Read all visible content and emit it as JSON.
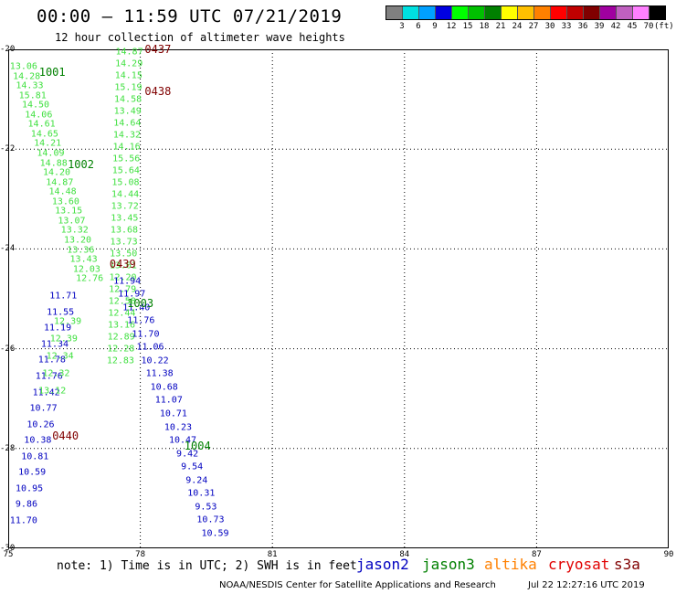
{
  "title": "00:00 – 11:59 UTC 07/21/2019",
  "subtitle": "12 hour collection of altimeter wave heights",
  "colorbar": {
    "colors": [
      "#808080",
      "#00e0e0",
      "#00a0ff",
      "#0000e0",
      "#00ff00",
      "#00c000",
      "#008000",
      "#ffff00",
      "#ffc000",
      "#ff8000",
      "#ff0000",
      "#c00000",
      "#800000",
      "#a000a0",
      "#c060c0",
      "#ff80ff",
      "#000000"
    ],
    "labels": [
      "3",
      "6",
      "9",
      "12",
      "15",
      "18",
      "21",
      "24",
      "27",
      "30",
      "33",
      "36",
      "39",
      "42",
      "45",
      "70"
    ],
    "unit": "(ft)"
  },
  "map": {
    "lat_labels": [
      "-20",
      "-22",
      "-24",
      "-26",
      "-28",
      "-30"
    ],
    "lon_labels": [
      "75",
      "78",
      "81",
      "84",
      "87",
      "90"
    ]
  },
  "satellite_colors": {
    "jason2": "#0000c0",
    "jason3": "#008000",
    "jason3_light": "#40e040",
    "cryosat": "#800000"
  },
  "track_labels": [
    {
      "text": "0437",
      "lon": 78.4,
      "lat": -20.0,
      "sat": "cryosat"
    },
    {
      "text": "1001",
      "lon": 76.0,
      "lat": -20.45,
      "sat": "jason3"
    },
    {
      "text": "0438",
      "lon": 78.4,
      "lat": -20.85,
      "sat": "cryosat"
    },
    {
      "text": "1002",
      "lon": 76.65,
      "lat": -22.3,
      "sat": "jason3"
    },
    {
      "text": "0439",
      "lon": 77.6,
      "lat": -24.3,
      "sat": "cryosat"
    },
    {
      "text": "1003",
      "lon": 78.0,
      "lat": -25.1,
      "sat": "jason3"
    },
    {
      "text": "0440",
      "lon": 76.3,
      "lat": -27.75,
      "sat": "cryosat"
    },
    {
      "text": "1004",
      "lon": 79.3,
      "lat": -27.95,
      "sat": "jason3"
    }
  ],
  "obs_track_1": {
    "sat": "jason3_light",
    "values": [
      "13.06",
      "14.28",
      "14.33",
      "15.81",
      "14.50",
      "14.06",
      "14.61",
      "14.65",
      "14.21",
      "14.09",
      "14.88",
      "14.20",
      "14.87",
      "14.48",
      "13.60",
      "13.15",
      "13.07",
      "13.32",
      "13.20",
      "13.36",
      "13.43",
      "12.03",
      "12.76"
    ]
  },
  "obs_track_2": {
    "sat": "jason3_light",
    "values": [
      "14.87",
      "14.29",
      "14.15",
      "15.19",
      "14.58",
      "13.49",
      "14.64",
      "14.32",
      "14.16",
      "15.56",
      "15.64",
      "15.08",
      "14.44",
      "13.72",
      "13.45",
      "13.68",
      "13.73",
      "13.50",
      "13.61",
      "12.20",
      "12.79",
      "12.58",
      "12.44",
      "13.16",
      "12.89",
      "12.28",
      "12.83"
    ]
  },
  "obs_track_3": {
    "sat": "jason2",
    "values": [
      "11.71",
      "11.55",
      "11.19",
      "11.34",
      "11.78",
      "11.76",
      "11.42",
      "10.77",
      "10.26",
      "10.38",
      "10.81",
      "10.59",
      "10.95",
      "9.86",
      "11.70"
    ]
  },
  "obs_track_3b": {
    "sat": "jason3_light",
    "values": [
      "12.39",
      "12.39",
      "12.34",
      "12.32",
      "13.12"
    ]
  },
  "obs_track_4": {
    "sat": "jason2",
    "values": [
      "11.94",
      "11.97",
      "11.40",
      "11.76",
      "11.70",
      "11.06",
      "10.22",
      "11.38",
      "10.68",
      "11.07",
      "10.71",
      "10.23",
      "10.47",
      "9.42",
      "9.54",
      "9.24",
      "10.31",
      "9.53",
      "10.73",
      "10.59"
    ]
  },
  "note": "note: 1) Time is in UTC; 2) SWH is in feet",
  "legend": [
    {
      "name": "jason2",
      "color": "#0000c0"
    },
    {
      "name": "jason3",
      "color": "#008000"
    },
    {
      "name": "altika",
      "color": "#ff8000"
    },
    {
      "name": "cryosat",
      "color": "#e00000"
    },
    {
      "name": "s3a",
      "color": "#800000"
    }
  ],
  "credit": "NOAA/NESDIS Center for Satellite Applications and Research",
  "credit_time": "Jul 22 12:27:16 UTC 2019"
}
